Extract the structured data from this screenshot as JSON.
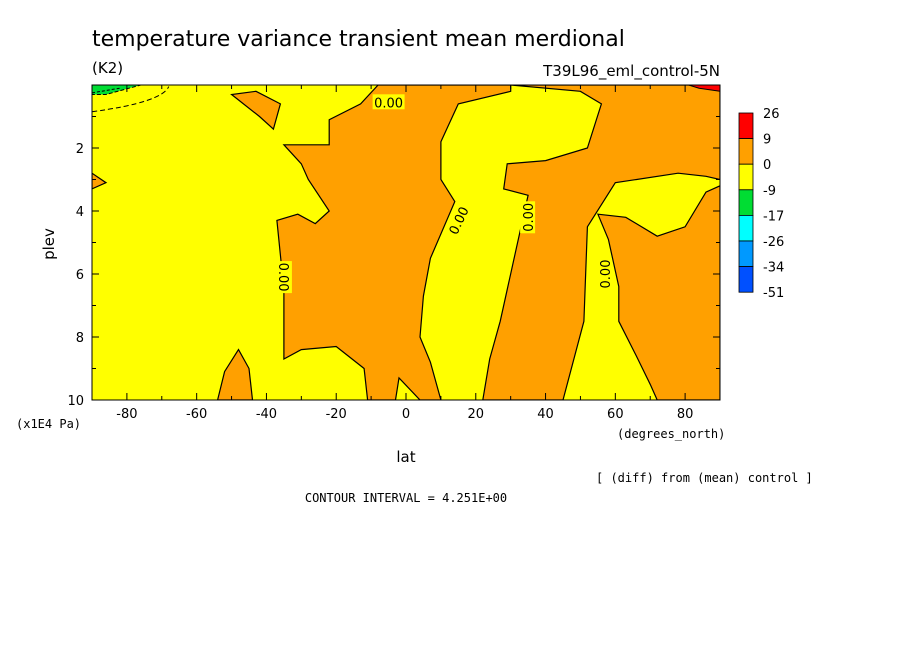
{
  "chart_data": {
    "type": "contour",
    "title": "temperature variance transient mean merdional",
    "units": "(K2)",
    "run_label": "T39L96_eml_control-5N",
    "xlabel": "lat",
    "x_units": "(degrees_north)",
    "ylabel": "plev",
    "y_units": "(x1E4 Pa)",
    "xlim": [
      -90,
      90
    ],
    "ylim": [
      10,
      0
    ],
    "x_ticks": [
      "-80",
      "-60",
      "-40",
      "-20",
      "0",
      "20",
      "40",
      "60",
      "80"
    ],
    "x_tick_values": [
      -80,
      -60,
      -40,
      -20,
      0,
      20,
      40,
      60,
      80
    ],
    "y_ticks": [
      "2",
      "4",
      "6",
      "8",
      "10"
    ],
    "y_tick_values": [
      2,
      4,
      6,
      8,
      10
    ],
    "contour_labels": [
      "0.00",
      "0.00",
      "0.00",
      "0.00",
      "0.00"
    ],
    "contour_label_positions": [
      [
        -35,
        6.1
      ],
      [
        -5,
        0.55
      ],
      [
        15,
        4.3
      ],
      [
        35,
        4.2
      ],
      [
        57,
        6.0
      ]
    ],
    "colorbar": {
      "labels": [
        "26",
        "9",
        "0",
        "-9",
        "-17",
        "-26",
        "-34",
        "-51"
      ],
      "colors": [
        "#ff0000",
        "#ffa000",
        "#ffff00",
        "#00dd33",
        "#00ffff",
        "#0099ff",
        "#0050ff"
      ]
    },
    "colors": {
      "positive": "#ffa000",
      "zero_band": "#ffff00",
      "negative": "#00dd33"
    },
    "regions_positive": [
      [
        [
          -43,
          0.2
        ],
        [
          -36,
          0.6
        ],
        [
          -38,
          1.4
        ],
        [
          -42,
          1.0
        ],
        [
          -50,
          0.3
        ]
      ],
      [
        [
          -35,
          1.9
        ],
        [
          -22,
          1.9
        ],
        [
          -22,
          1.1
        ],
        [
          -13,
          0.6
        ],
        [
          -8,
          0.0
        ],
        [
          20,
          0.0
        ],
        [
          30,
          0.0
        ],
        [
          30,
          0.2
        ],
        [
          15,
          0.6
        ],
        [
          10,
          1.8
        ],
        [
          10,
          3.0
        ],
        [
          14,
          3.7
        ],
        [
          7,
          5.5
        ],
        [
          5,
          6.7
        ],
        [
          4,
          8.0
        ],
        [
          7,
          8.8
        ],
        [
          10,
          10
        ],
        [
          4,
          10
        ],
        [
          -2,
          9.3
        ],
        [
          -3,
          10
        ],
        [
          -11,
          10
        ],
        [
          -12,
          9.0
        ],
        [
          -20,
          8.3
        ],
        [
          -30,
          8.4
        ],
        [
          -35,
          8.7
        ],
        [
          -35,
          6.5
        ],
        [
          -37,
          4.3
        ],
        [
          -31,
          4.1
        ],
        [
          -26,
          4.4
        ],
        [
          -22,
          4.0
        ],
        [
          -28,
          3.0
        ],
        [
          -30,
          2.5
        ]
      ],
      [
        [
          30,
          0.0
        ],
        [
          90,
          0.0
        ],
        [
          90,
          3.0
        ],
        [
          86,
          2.9
        ],
        [
          78,
          2.8
        ],
        [
          60,
          3.1
        ],
        [
          52,
          4.5
        ],
        [
          51,
          7.5
        ],
        [
          45,
          10.0
        ],
        [
          22,
          10.0
        ],
        [
          24,
          8.7
        ],
        [
          27,
          7.5
        ],
        [
          32,
          5.0
        ],
        [
          35,
          3.5
        ],
        [
          28,
          3.3
        ],
        [
          29,
          2.5
        ],
        [
          40,
          2.4
        ],
        [
          52,
          2.0
        ],
        [
          56,
          0.6
        ],
        [
          50,
          0.2
        ]
      ],
      [
        [
          55,
          4.1
        ],
        [
          58,
          4.9
        ],
        [
          61,
          6.4
        ],
        [
          61,
          7.5
        ],
        [
          66,
          8.6
        ],
        [
          70,
          9.5
        ],
        [
          72,
          10.0
        ],
        [
          90,
          10.0
        ],
        [
          90,
          3.2
        ],
        [
          86,
          3.4
        ],
        [
          80,
          4.5
        ],
        [
          72,
          4.8
        ],
        [
          63,
          4.2
        ]
      ],
      [
        [
          -54,
          10
        ],
        [
          -44,
          10
        ],
        [
          -45,
          9.0
        ],
        [
          -48,
          8.4
        ],
        [
          -52,
          9.1
        ]
      ],
      [
        [
          -90,
          2.8
        ],
        [
          -86,
          3.1
        ],
        [
          -90,
          3.3
        ]
      ]
    ],
    "regions_negative": [
      [
        [
          -90,
          0.0
        ],
        [
          -76,
          0.0
        ],
        [
          -80,
          0.12
        ],
        [
          -86,
          0.3
        ],
        [
          -90,
          0.3
        ]
      ]
    ],
    "regions_high": [
      [
        [
          81,
          0.0
        ],
        [
          90,
          0.0
        ],
        [
          90,
          0.2
        ],
        [
          84,
          0.1
        ]
      ]
    ],
    "contour_interval_text": "CONTOUR INTERVAL = 4.251E+00",
    "footnote": "[ (diff) from (mean) control ]"
  }
}
